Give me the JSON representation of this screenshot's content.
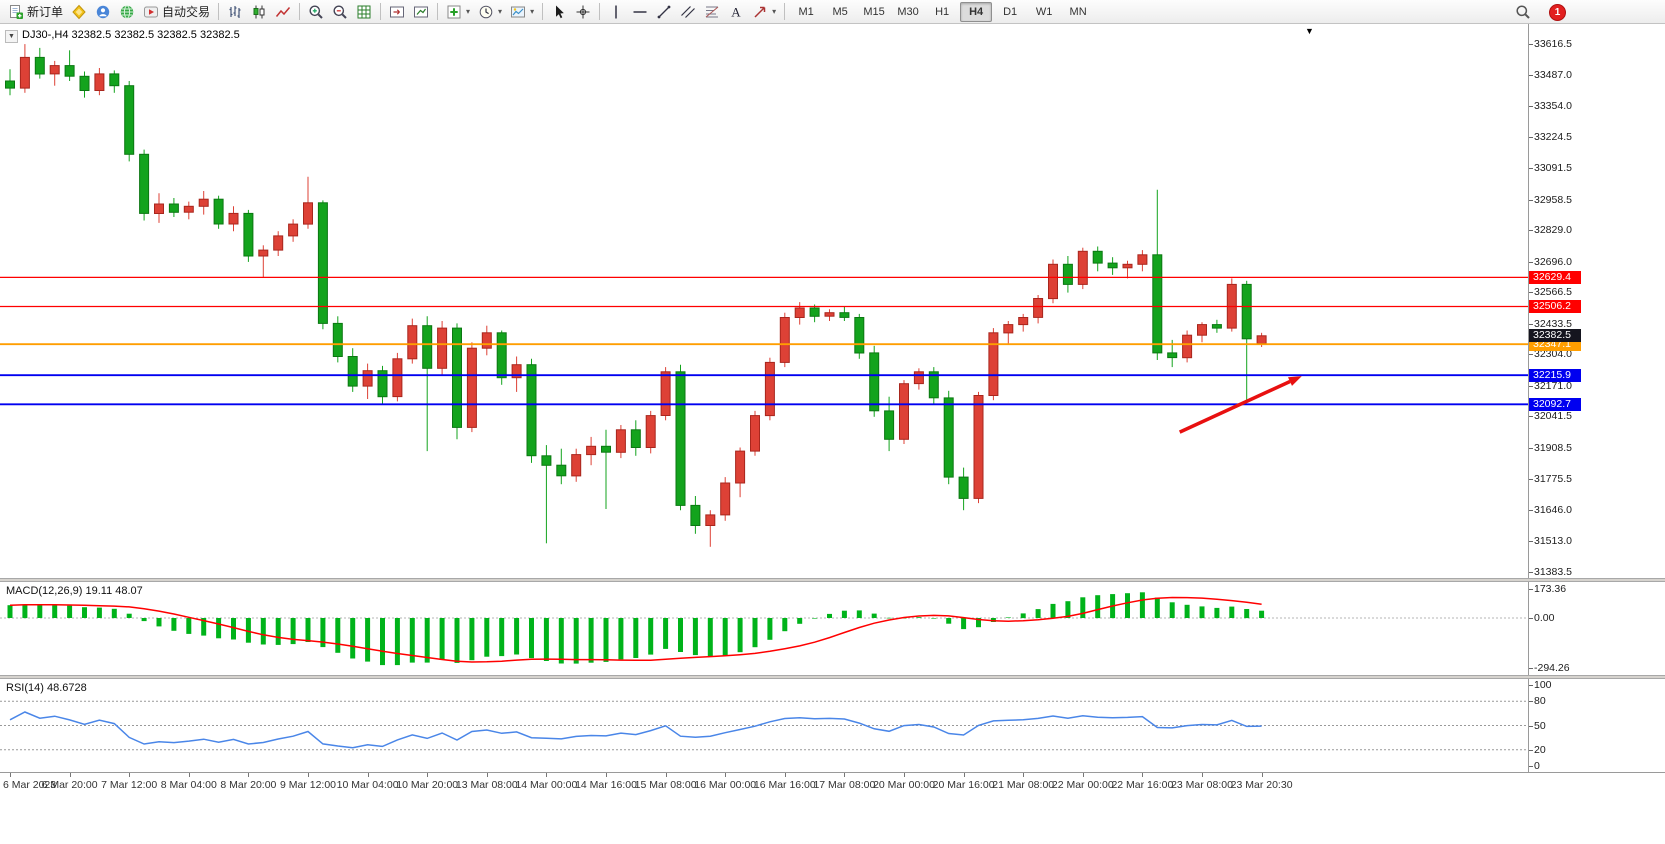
{
  "chart": {
    "title": "DJ30-,H4 32382.5 32382.5 32382.5 32382.5",
    "symbol": "DJ30-",
    "period": "H4"
  },
  "toolbar": {
    "groups": [
      {
        "items": [
          {
            "icon": "new-order",
            "name": "new-order-button",
            "label": "新订单"
          },
          {
            "icon": "metaeditor",
            "name": "metaeditor-button"
          },
          {
            "icon": "accounts",
            "name": "accounts-button"
          },
          {
            "icon": "community",
            "name": "community-button"
          },
          {
            "icon": "autotrade",
            "name": "autotrade-button",
            "label": "自动交易"
          }
        ]
      },
      {
        "items": [
          {
            "icon": "ohlc-bars",
            "name": "bar-chart-button"
          },
          {
            "icon": "candles",
            "name": "candle-chart-button"
          },
          {
            "icon": "line-chart",
            "name": "line-chart-button"
          }
        ]
      },
      {
        "items": [
          {
            "icon": "zoom-in",
            "name": "zoom-in-button"
          },
          {
            "icon": "zoom-out",
            "name": "zoom-out-button"
          },
          {
            "icon": "tile-grid",
            "name": "tile-windows-button"
          }
        ]
      },
      {
        "items": [
          {
            "icon": "chart-shift",
            "name": "chart-shift-button"
          },
          {
            "icon": "auto-scroll",
            "name": "auto-scroll-button"
          }
        ]
      },
      {
        "items": [
          {
            "icon": "add-indicator",
            "name": "indicators-button",
            "caret": true
          },
          {
            "icon": "clock-period",
            "name": "periods-button",
            "caret": true
          },
          {
            "icon": "template",
            "name": "templates-button",
            "caret": true
          }
        ]
      },
      {
        "items": [
          {
            "icon": "cursor",
            "name": "cursor-button"
          },
          {
            "icon": "crosshair",
            "name": "crosshair-button"
          }
        ]
      },
      {
        "items": [
          {
            "icon": "vertical-line",
            "name": "vline-button"
          },
          {
            "icon": "horizontal-line",
            "name": "hline-button"
          },
          {
            "icon": "trend-line",
            "name": "trendline-button"
          },
          {
            "icon": "channel",
            "name": "channel-button"
          },
          {
            "icon": "fibonacci",
            "name": "fibo-button"
          },
          {
            "icon": "text-label",
            "name": "text-button"
          },
          {
            "icon": "arrows-tool",
            "name": "arrows-button",
            "caret": true
          }
        ]
      }
    ],
    "timeframes": {
      "options": [
        "M1",
        "M5",
        "M15",
        "M30",
        "H1",
        "H4",
        "D1",
        "W1",
        "MN"
      ],
      "active": "H4"
    },
    "right": [
      {
        "icon": "search",
        "name": "search-button"
      },
      {
        "icon": "notification",
        "name": "notifications-button",
        "badge": "1"
      }
    ]
  },
  "chart_data": {
    "type": "candlestick",
    "symbol": "DJ30-",
    "timeframe": "H4",
    "colors": {
      "up": "#dd4136",
      "up_border": "#a8261d",
      "down": "#13a31d",
      "down_border": "#0b7712"
    },
    "ohlc": [
      [
        33460,
        33510,
        33400,
        33430
      ],
      [
        33430,
        33616,
        33410,
        33560
      ],
      [
        33560,
        33600,
        33470,
        33490
      ],
      [
        33490,
        33545,
        33440,
        33525
      ],
      [
        33525,
        33590,
        33460,
        33480
      ],
      [
        33480,
        33500,
        33390,
        33420
      ],
      [
        33420,
        33515,
        33400,
        33490
      ],
      [
        33490,
        33505,
        33410,
        33440
      ],
      [
        33440,
        33460,
        33120,
        33150
      ],
      [
        33150,
        33170,
        32870,
        32900
      ],
      [
        32900,
        32985,
        32860,
        32940
      ],
      [
        32940,
        32965,
        32885,
        32905
      ],
      [
        32905,
        32950,
        32875,
        32930
      ],
      [
        32930,
        32995,
        32895,
        32960
      ],
      [
        32960,
        32975,
        32835,
        32855
      ],
      [
        32855,
        32930,
        32825,
        32900
      ],
      [
        32900,
        32915,
        32695,
        32720
      ],
      [
        32720,
        32765,
        32629,
        32745
      ],
      [
        32745,
        32825,
        32720,
        32805
      ],
      [
        32805,
        32875,
        32780,
        32855
      ],
      [
        32855,
        33055,
        32835,
        32945
      ],
      [
        32945,
        32955,
        32410,
        32435
      ],
      [
        32435,
        32465,
        32270,
        32295
      ],
      [
        32295,
        32330,
        32145,
        32170
      ],
      [
        32170,
        32265,
        32115,
        32235
      ],
      [
        32235,
        32255,
        32095,
        32125
      ],
      [
        32125,
        32310,
        32105,
        32285
      ],
      [
        32285,
        32455,
        32265,
        32425
      ],
      [
        32425,
        32465,
        31895,
        32245
      ],
      [
        32245,
        32445,
        32215,
        32415
      ],
      [
        32415,
        32435,
        31945,
        31995
      ],
      [
        31995,
        32355,
        31975,
        32330
      ],
      [
        32330,
        32425,
        32300,
        32395
      ],
      [
        32395,
        32405,
        32175,
        32205
      ],
      [
        32205,
        32295,
        32145,
        32260
      ],
      [
        32260,
        32285,
        31845,
        31875
      ],
      [
        31875,
        31920,
        31505,
        31835
      ],
      [
        31835,
        31905,
        31755,
        31790
      ],
      [
        31790,
        31905,
        31765,
        31880
      ],
      [
        31880,
        31955,
        31835,
        31915
      ],
      [
        31915,
        31985,
        31650,
        31890
      ],
      [
        31890,
        32005,
        31865,
        31985
      ],
      [
        31985,
        32025,
        31875,
        31910
      ],
      [
        31910,
        32065,
        31885,
        32045
      ],
      [
        32045,
        32250,
        32025,
        32230
      ],
      [
        32230,
        32260,
        31645,
        31665
      ],
      [
        31665,
        31705,
        31545,
        31580
      ],
      [
        31580,
        31645,
        31490,
        31625
      ],
      [
        31625,
        31785,
        31600,
        31760
      ],
      [
        31760,
        31910,
        31700,
        31895
      ],
      [
        31895,
        32065,
        31875,
        32045
      ],
      [
        32045,
        32290,
        32025,
        32270
      ],
      [
        32270,
        32480,
        32250,
        32460
      ],
      [
        32460,
        32525,
        32430,
        32500
      ],
      [
        32500,
        32515,
        32440,
        32465
      ],
      [
        32465,
        32495,
        32445,
        32480
      ],
      [
        32480,
        32505,
        32445,
        32460
      ],
      [
        32460,
        32475,
        32285,
        32310
      ],
      [
        32310,
        32340,
        32040,
        32065
      ],
      [
        32065,
        32125,
        31895,
        31945
      ],
      [
        31945,
        32195,
        31925,
        32180
      ],
      [
        32180,
        32245,
        32155,
        32230
      ],
      [
        32230,
        32250,
        32095,
        32120
      ],
      [
        32120,
        32150,
        31755,
        31785
      ],
      [
        31785,
        31825,
        31645,
        31695
      ],
      [
        31695,
        32145,
        31675,
        32130
      ],
      [
        32130,
        32415,
        32110,
        32395
      ],
      [
        32395,
        32445,
        32345,
        32430
      ],
      [
        32430,
        32475,
        32400,
        32460
      ],
      [
        32460,
        32555,
        32435,
        32540
      ],
      [
        32540,
        32705,
        32520,
        32685
      ],
      [
        32685,
        32720,
        32565,
        32600
      ],
      [
        32600,
        32755,
        32580,
        32740
      ],
      [
        32740,
        32760,
        32655,
        32690
      ],
      [
        32690,
        32715,
        32640,
        32670
      ],
      [
        32670,
        32700,
        32625,
        32685
      ],
      [
        32685,
        32745,
        32655,
        32725
      ],
      [
        32725,
        33000,
        32280,
        32310
      ],
      [
        32310,
        32365,
        32250,
        32290
      ],
      [
        32290,
        32405,
        32270,
        32385
      ],
      [
        32385,
        32440,
        32355,
        32430
      ],
      [
        32430,
        32450,
        32395,
        32415
      ],
      [
        32415,
        32625,
        32400,
        32600
      ],
      [
        32600,
        32615,
        32105,
        32370
      ],
      [
        32350,
        32395,
        32335,
        32382.5
      ]
    ],
    "x_label_step": 4,
    "x_labels": [
      "6 Mar 2023",
      "6 Mar 20:00",
      "7 Mar 12:00",
      "8 Mar 04:00",
      "8 Mar 20:00",
      "9 Mar 12:00",
      "10 Mar 04:00",
      "10 Mar 20:00",
      "13 Mar 08:00",
      "14 Mar 00:00",
      "14 Mar 16:00",
      "15 Mar 08:00",
      "16 Mar 00:00",
      "16 Mar 16:00",
      "17 Mar 08:00",
      "20 Mar 00:00",
      "20 Mar 16:00",
      "21 Mar 08:00",
      "22 Mar 00:00",
      "22 Mar 16:00",
      "23 Mar 08:00",
      "23 Mar 20:30"
    ],
    "price_axis": {
      "max": 33616.5,
      "min": 31383.5,
      "ticks": [
        "33616.5",
        "33487.0",
        "33354.0",
        "33224.5",
        "33091.5",
        "32958.5",
        "32829.0",
        "32696.0",
        "32566.5",
        "32433.5",
        "32304.0",
        "32171.0",
        "32041.5",
        "31908.5",
        "31775.5",
        "31646.0",
        "31513.0",
        "31383.5"
      ]
    },
    "hlines": [
      {
        "price": 32629.4,
        "label": "32629.4",
        "color": "#ff0000",
        "width": 1.2
      },
      {
        "price": 32506.2,
        "label": "32506.2",
        "color": "#ff0000",
        "width": 1.2
      },
      {
        "price": 32347.1,
        "label": "32347.1",
        "color": "#ff9e00",
        "width": 1.8
      },
      {
        "price": 32215.9,
        "label": "32215.9",
        "color": "#0000f0",
        "width": 1.8
      },
      {
        "price": 32092.7,
        "label": "32092.7",
        "color": "#0000f0",
        "width": 1.8
      }
    ],
    "current_price": {
      "value": 32382.5,
      "label": "32382.5",
      "box_color": "#15151f"
    },
    "arrow": {
      "from_bar": 78.5,
      "from_price": 31975,
      "to_bar": 86.7,
      "to_price": 32212,
      "color": "#e81010"
    },
    "macd": {
      "label": "MACD(12,26,9) 19.11 48.07",
      "max": 173.36,
      "min": -294.26,
      "axis_labels": [
        "173.36",
        "0.00",
        "-294.26"
      ],
      "histogram_color": "#00b31a",
      "signal_color": "#ff0000"
    },
    "rsi": {
      "label": "RSI(14) 48.6728",
      "levels": [
        100,
        80,
        50,
        20,
        0
      ],
      "dashed_levels": [
        80,
        50,
        20
      ],
      "line_color": "#4a86e8"
    }
  }
}
